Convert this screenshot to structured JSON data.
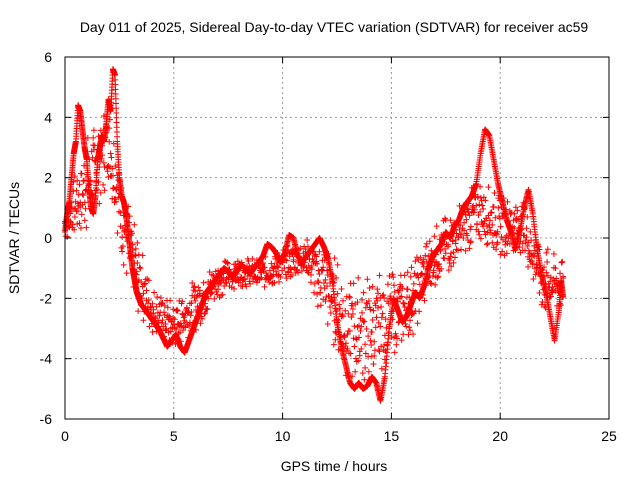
{
  "chart_data": {
    "type": "scatter",
    "title": "Day 011 of 2025, Sidereal Day-to-day VTEC variation (SDTVAR) for receiver ac59",
    "xlabel": "GPS time / hours",
    "ylabel": "SDTVAR / TECUs",
    "xlim": [
      0,
      25
    ],
    "ylim": [
      -6,
      6
    ],
    "xticks": [
      "0",
      "5",
      "10",
      "15",
      "20",
      "25"
    ],
    "yticks": [
      "-6",
      "-4",
      "-2",
      "0",
      "2",
      "4",
      "6"
    ],
    "grid": true,
    "marker": "+",
    "series": [
      {
        "name": "SDTVAR",
        "color": "#ff0000",
        "points": [
          [
            0.0,
            0.2
          ],
          [
            0.1,
            0.8
          ],
          [
            0.2,
            1.2
          ],
          [
            0.3,
            2.0
          ],
          [
            0.4,
            2.8
          ],
          [
            0.5,
            3.2
          ],
          [
            0.6,
            4.4
          ],
          [
            0.7,
            4.2
          ],
          [
            0.8,
            3.6
          ],
          [
            0.9,
            3.0
          ],
          [
            1.0,
            2.6
          ],
          [
            1.1,
            1.6
          ],
          [
            1.2,
            1.0
          ],
          [
            1.3,
            0.8
          ],
          [
            1.4,
            1.4
          ],
          [
            1.5,
            2.6
          ],
          [
            1.6,
            3.0
          ],
          [
            1.7,
            3.4
          ],
          [
            1.8,
            3.2
          ],
          [
            1.9,
            3.8
          ],
          [
            2.0,
            4.6
          ],
          [
            2.1,
            4.2
          ],
          [
            2.2,
            5.6
          ],
          [
            2.3,
            5.4
          ],
          [
            2.4,
            3.2
          ],
          [
            2.5,
            2.0
          ],
          [
            2.6,
            1.4
          ],
          [
            2.7,
            1.2
          ],
          [
            2.8,
            0.8
          ],
          [
            2.9,
            0.2
          ],
          [
            3.0,
            -0.4
          ],
          [
            3.1,
            -1.0
          ],
          [
            3.2,
            -1.4
          ],
          [
            3.3,
            -1.8
          ],
          [
            3.4,
            -2.0
          ],
          [
            3.5,
            -2.2
          ],
          [
            3.7,
            -2.4
          ],
          [
            3.9,
            -2.6
          ],
          [
            4.1,
            -2.8
          ],
          [
            4.3,
            -3.0
          ],
          [
            4.5,
            -3.3
          ],
          [
            4.7,
            -3.6
          ],
          [
            4.9,
            -3.4
          ],
          [
            5.1,
            -3.2
          ],
          [
            5.3,
            -3.6
          ],
          [
            5.5,
            -3.8
          ],
          [
            5.7,
            -3.4
          ],
          [
            5.9,
            -3.0
          ],
          [
            6.1,
            -2.6
          ],
          [
            6.3,
            -2.2
          ],
          [
            6.5,
            -1.8
          ],
          [
            6.7,
            -1.6
          ],
          [
            6.9,
            -1.4
          ],
          [
            7.1,
            -1.2
          ],
          [
            7.3,
            -1.0
          ],
          [
            7.5,
            -1.1
          ],
          [
            7.7,
            -1.3
          ],
          [
            7.9,
            -1.1
          ],
          [
            8.1,
            -0.9
          ],
          [
            8.3,
            -1.0
          ],
          [
            8.5,
            -1.2
          ],
          [
            8.7,
            -1.0
          ],
          [
            8.9,
            -0.8
          ],
          [
            9.1,
            -0.6
          ],
          [
            9.3,
            -0.2
          ],
          [
            9.5,
            -0.3
          ],
          [
            9.7,
            -0.5
          ],
          [
            9.9,
            -0.8
          ],
          [
            10.1,
            -0.5
          ],
          [
            10.3,
            0.1
          ],
          [
            10.5,
            0.0
          ],
          [
            10.7,
            -0.6
          ],
          [
            10.9,
            -0.8
          ],
          [
            11.1,
            -0.6
          ],
          [
            11.3,
            -0.4
          ],
          [
            11.5,
            -0.2
          ],
          [
            11.7,
            0.0
          ],
          [
            11.9,
            -0.3
          ],
          [
            12.1,
            -0.7
          ],
          [
            12.3,
            -1.5
          ],
          [
            12.5,
            -2.8
          ],
          [
            12.7,
            -3.6
          ],
          [
            12.9,
            -4.2
          ],
          [
            13.1,
            -4.8
          ],
          [
            13.3,
            -5.0
          ],
          [
            13.5,
            -4.8
          ],
          [
            13.7,
            -5.0
          ],
          [
            13.9,
            -4.9
          ],
          [
            14.1,
            -4.6
          ],
          [
            14.3,
            -4.8
          ],
          [
            14.5,
            -5.4
          ],
          [
            14.7,
            -4.6
          ],
          [
            14.9,
            -3.0
          ],
          [
            15.1,
            -2.0
          ],
          [
            15.3,
            -2.4
          ],
          [
            15.5,
            -2.8
          ],
          [
            15.7,
            -2.6
          ],
          [
            15.9,
            -2.2
          ],
          [
            16.1,
            -1.8
          ],
          [
            16.3,
            -2.0
          ],
          [
            16.5,
            -1.6
          ],
          [
            16.7,
            -1.0
          ],
          [
            16.9,
            -0.6
          ],
          [
            17.1,
            -0.4
          ],
          [
            17.3,
            -0.2
          ],
          [
            17.5,
            0.2
          ],
          [
            17.7,
            0.0
          ],
          [
            17.9,
            0.4
          ],
          [
            18.1,
            0.6
          ],
          [
            18.3,
            1.0
          ],
          [
            18.5,
            1.2
          ],
          [
            18.7,
            1.4
          ],
          [
            18.9,
            1.8
          ],
          [
            19.1,
            2.8
          ],
          [
            19.3,
            3.6
          ],
          [
            19.5,
            3.4
          ],
          [
            19.7,
            2.6
          ],
          [
            19.9,
            1.8
          ],
          [
            20.1,
            1.2
          ],
          [
            20.3,
            0.6
          ],
          [
            20.5,
            0.2
          ],
          [
            20.7,
            -0.4
          ],
          [
            20.9,
            0.2
          ],
          [
            21.1,
            1.0
          ],
          [
            21.3,
            1.6
          ],
          [
            21.5,
            0.8
          ],
          [
            21.7,
            -0.4
          ],
          [
            21.9,
            -1.2
          ],
          [
            22.1,
            -1.8
          ],
          [
            22.3,
            -2.6
          ],
          [
            22.5,
            -3.4
          ],
          [
            22.7,
            -2.4
          ],
          [
            22.8,
            -1.4
          ],
          [
            22.9,
            -2.0
          ]
        ],
        "scatter_band": [
          [
            0.0,
            0.5,
            0.6
          ],
          [
            1.0,
            1.8,
            1.6
          ],
          [
            2.0,
            3.2,
            1.4
          ],
          [
            3.0,
            -0.6,
            1.6
          ],
          [
            4.0,
            -2.4,
            0.8
          ],
          [
            5.0,
            -2.9,
            0.8
          ],
          [
            6.0,
            -2.2,
            0.9
          ],
          [
            7.0,
            -1.4,
            0.6
          ],
          [
            8.0,
            -1.1,
            0.5
          ],
          [
            9.0,
            -1.2,
            0.5
          ],
          [
            10.0,
            -0.9,
            0.6
          ],
          [
            11.0,
            -0.6,
            0.6
          ],
          [
            12.0,
            -1.6,
            1.4
          ],
          [
            13.0,
            -3.0,
            1.8
          ],
          [
            14.0,
            -3.0,
            1.8
          ],
          [
            15.0,
            -2.6,
            1.4
          ],
          [
            16.0,
            -2.0,
            1.2
          ],
          [
            17.0,
            -0.6,
            1.0
          ],
          [
            18.0,
            0.0,
            1.0
          ],
          [
            19.0,
            1.0,
            1.0
          ],
          [
            20.0,
            0.4,
            1.0
          ],
          [
            21.0,
            0.4,
            0.9
          ],
          [
            22.0,
            -1.4,
            1.2
          ],
          [
            22.9,
            -1.6,
            0.8
          ]
        ]
      }
    ]
  }
}
